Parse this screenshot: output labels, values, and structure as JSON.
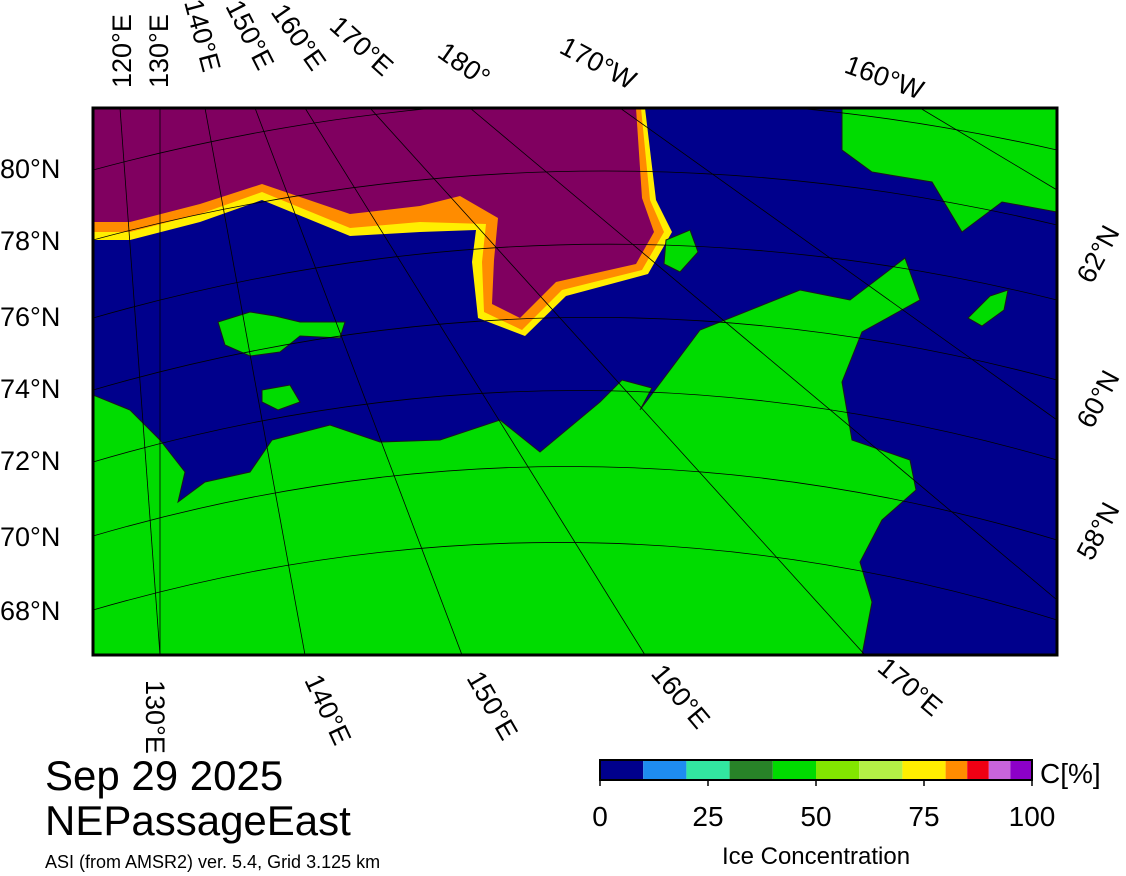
{
  "header": {
    "date": "Sep 29 2025",
    "region": "NEPassageEast",
    "source": "ASI (from AMSR2) ver. 5.4,  Grid 3.125 km"
  },
  "map": {
    "top_labels": [
      "120°E",
      "130°E",
      "140°E",
      "150°E",
      "160°E",
      "170°E",
      "180°",
      "170°W",
      "160°W"
    ],
    "left_labels": [
      "80°N",
      "78°N",
      "76°N",
      "74°N",
      "72°N",
      "70°N",
      "68°N"
    ],
    "right_labels": [
      "62°N",
      "60°N",
      "58°N"
    ],
    "bottom_labels": [
      "130°E",
      "140°E",
      "150°E",
      "160°E",
      "170°E"
    ]
  },
  "colorbar": {
    "label": "Ice Concentration",
    "unit": "C[%]",
    "bounds": [
      0,
      10,
      20,
      30,
      40,
      50,
      60,
      70,
      80,
      85,
      90,
      95,
      100
    ],
    "colors": [
      "#00008c",
      "#1e8cf0",
      "#32e6a0",
      "#288228",
      "#00dc00",
      "#82e600",
      "#b4f046",
      "#ffee00",
      "#ff8c00",
      "#f00014",
      "#c864dc",
      "#8c00c8"
    ],
    "ticks": [
      0,
      25,
      50,
      75,
      100
    ]
  }
}
